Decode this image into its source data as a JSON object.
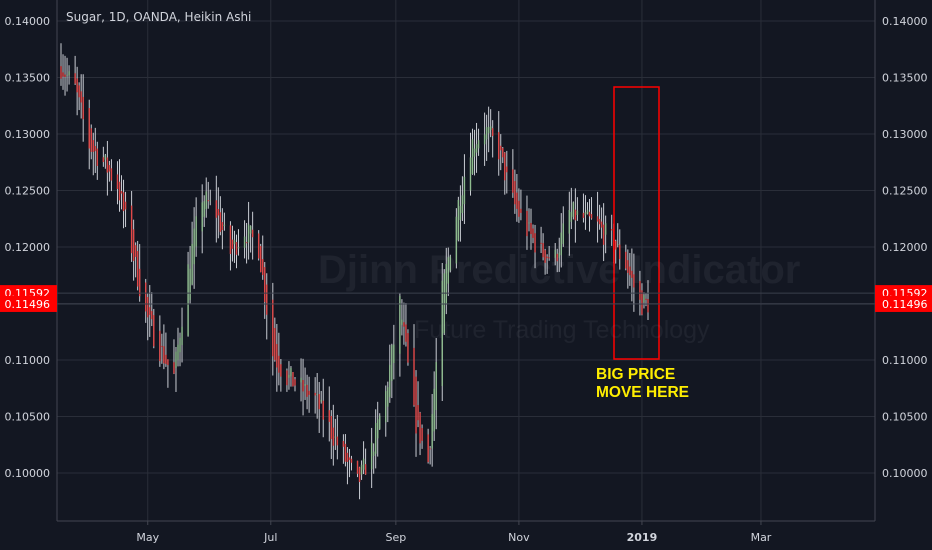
{
  "chart_title": "Sugar, 1D, OANDA, Heikin Ashi",
  "watermark": {
    "line1": "Djinn Predictive Indicator",
    "line2": "Future Trading Technology"
  },
  "annotation": {
    "line1": "BIG PRICE",
    "line2": "MOVE HERE"
  },
  "colors": {
    "background": "#131722",
    "grid": "#2a2e39",
    "up_candle": "#8fbc8f",
    "down_candle": "#e04848",
    "price_tag": "#ff0000",
    "annotation_box": "#ff0000",
    "annotation_text": "#ffee00"
  },
  "chart_data": {
    "type": "candlestick",
    "style": "Heikin Ashi",
    "symbol": "Sugar",
    "interval": "1D",
    "source": "OANDA",
    "y_range": [
      0.097,
      0.1435
    ],
    "y_ticks": [
      "0.10000",
      "0.10500",
      "0.11000",
      "0.11500",
      "0.12000",
      "0.12500",
      "0.13000",
      "0.13500",
      "0.14000"
    ],
    "x_labels": [
      "May",
      "Jul",
      "Sep",
      "Nov",
      "2019",
      "Mar"
    ],
    "price_tags": [
      "0.11592",
      "0.11496"
    ],
    "grid": true,
    "highlight_box": {
      "price_range": [
        0.11,
        0.1342
      ],
      "note": "vertical range around late December 2018"
    },
    "price_path": [
      {
        "date": "2018-03-19",
        "close": 0.136
      },
      {
        "date": "2018-03-26",
        "close": 0.134
      },
      {
        "date": "2018-04-02",
        "close": 0.129
      },
      {
        "date": "2018-04-09",
        "close": 0.1275
      },
      {
        "date": "2018-04-16",
        "close": 0.1255
      },
      {
        "date": "2018-04-23",
        "close": 0.12
      },
      {
        "date": "2018-04-30",
        "close": 0.114
      },
      {
        "date": "2018-05-07",
        "close": 0.111
      },
      {
        "date": "2018-05-14",
        "close": 0.1085
      },
      {
        "date": "2018-05-21",
        "close": 0.118
      },
      {
        "date": "2018-05-28",
        "close": 0.1245
      },
      {
        "date": "2018-06-04",
        "close": 0.123
      },
      {
        "date": "2018-06-11",
        "close": 0.1195
      },
      {
        "date": "2018-06-18",
        "close": 0.1215
      },
      {
        "date": "2018-06-25",
        "close": 0.12
      },
      {
        "date": "2018-07-02",
        "close": 0.1105
      },
      {
        "date": "2018-07-09",
        "close": 0.1085
      },
      {
        "date": "2018-07-16",
        "close": 0.1075
      },
      {
        "date": "2018-07-23",
        "close": 0.1065
      },
      {
        "date": "2018-07-30",
        "close": 0.104
      },
      {
        "date": "2018-08-06",
        "close": 0.1015
      },
      {
        "date": "2018-08-13",
        "close": 0.099
      },
      {
        "date": "2018-08-20",
        "close": 0.102
      },
      {
        "date": "2018-08-27",
        "close": 0.107
      },
      {
        "date": "2018-09-03",
        "close": 0.115
      },
      {
        "date": "2018-09-10",
        "close": 0.105
      },
      {
        "date": "2018-09-17",
        "close": 0.101
      },
      {
        "date": "2018-09-24",
        "close": 0.116
      },
      {
        "date": "2018-10-01",
        "close": 0.123
      },
      {
        "date": "2018-10-08",
        "close": 0.129
      },
      {
        "date": "2018-10-15",
        "close": 0.1305
      },
      {
        "date": "2018-10-22",
        "close": 0.1285
      },
      {
        "date": "2018-10-29",
        "close": 0.124
      },
      {
        "date": "2018-11-05",
        "close": 0.1215
      },
      {
        "date": "2018-11-12",
        "close": 0.1195
      },
      {
        "date": "2018-11-19",
        "close": 0.119
      },
      {
        "date": "2018-11-26",
        "close": 0.123
      },
      {
        "date": "2018-12-03",
        "close": 0.1225
      },
      {
        "date": "2018-12-10",
        "close": 0.1218
      },
      {
        "date": "2018-12-17",
        "close": 0.1205
      },
      {
        "date": "2018-12-24",
        "close": 0.1185
      },
      {
        "date": "2018-12-31",
        "close": 0.115
      }
    ]
  }
}
